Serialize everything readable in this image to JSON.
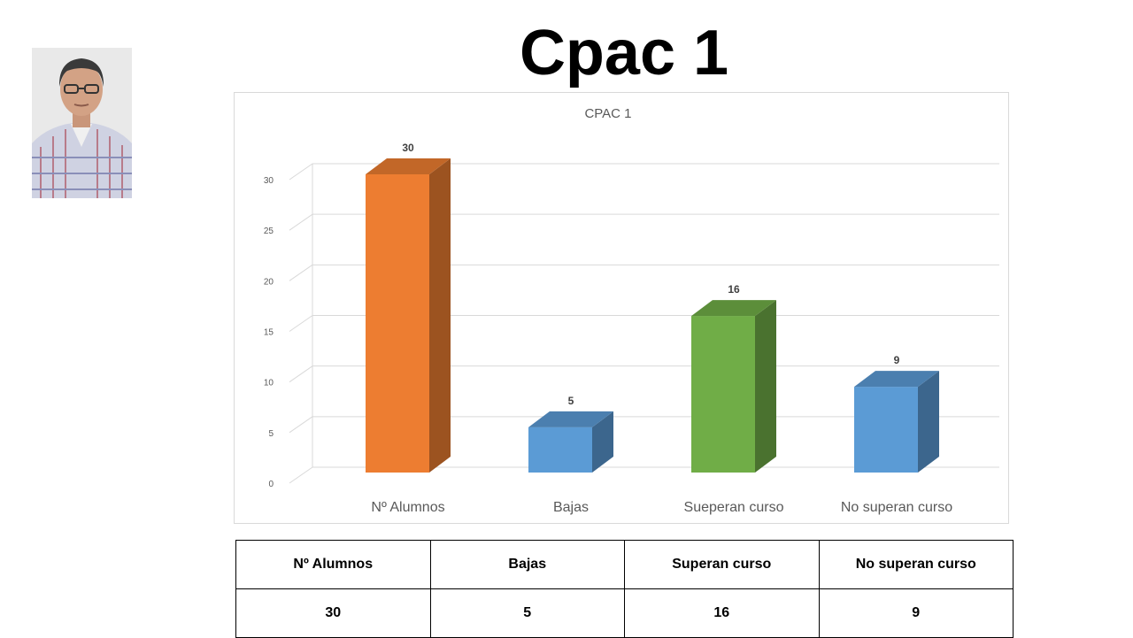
{
  "slide": {
    "title": "Cpac 1"
  },
  "colors": {
    "orange": "#ED7D31",
    "blue": "#5B9BD5",
    "green": "#70AD47",
    "grid": "#d9d9d9",
    "axis_text": "#595959"
  },
  "chart_data": {
    "type": "bar",
    "title": "CPAC 1",
    "categories": [
      "Nº Alumnos",
      "Bajas",
      "Sueperan curso",
      "No superan curso"
    ],
    "values": [
      30,
      5,
      16,
      9
    ],
    "bar_colors": [
      "#ED7D31",
      "#5B9BD5",
      "#70AD47",
      "#5B9BD5"
    ],
    "yticks": [
      0,
      5,
      10,
      15,
      20,
      25,
      30
    ],
    "ylim": [
      0,
      30
    ],
    "grid": true,
    "style": "3d-column",
    "xlabel": "",
    "ylabel": ""
  },
  "table": {
    "headers": [
      "Nº Alumnos",
      "Bajas",
      "Superan curso",
      "No superan curso"
    ],
    "values": [
      "30",
      "5",
      "16",
      "9"
    ]
  }
}
